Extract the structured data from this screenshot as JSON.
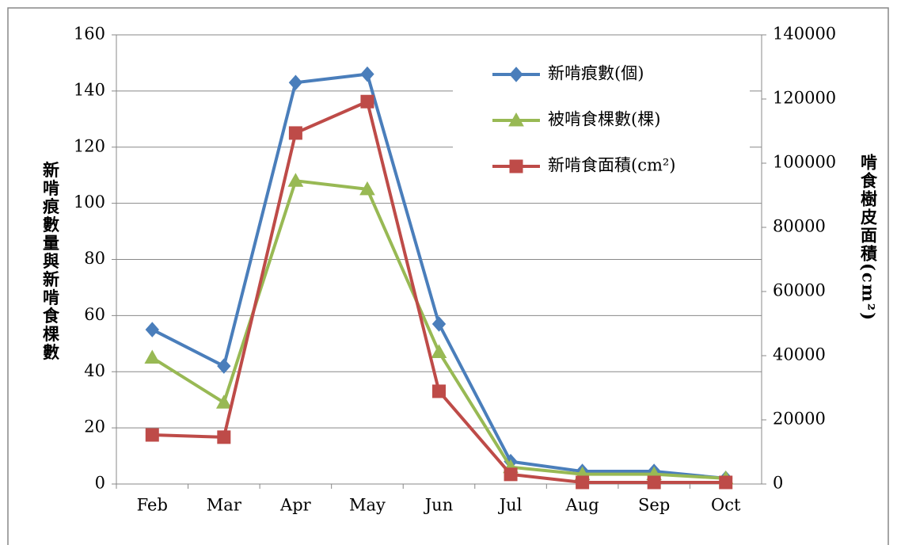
{
  "chart_data": {
    "type": "line",
    "ylabel": "新啃痕數量與新啃食棵數",
    "y2label": "啃食樹皮面積(cm²)",
    "categories": [
      "Feb",
      "Mar",
      "Apr",
      "May",
      "Jun",
      "Jul",
      "Aug",
      "Sep",
      "Oct"
    ],
    "series": [
      {
        "name": "新啃痕數(個)",
        "color": "#4a7ebb",
        "marker": "diamond",
        "values": [
          55,
          42,
          143,
          146,
          57,
          8,
          4.5,
          4.5,
          2
        ]
      },
      {
        "name": "被啃食棵數(棵)",
        "color": "#98b954",
        "marker": "triangle",
        "values": [
          45,
          29,
          108,
          105,
          47,
          6,
          3.5,
          3.5,
          2
        ]
      },
      {
        "name": "新啃食面積(cm²)",
        "color": "#be4b48",
        "marker": "square",
        "axis": "y2",
        "values": [
          15300,
          14600,
          109400,
          119200,
          28900,
          3000,
          500,
          500,
          500
        ]
      }
    ],
    "ylim": [
      0,
      160
    ],
    "yticks": [
      0,
      20,
      40,
      60,
      80,
      100,
      120,
      140,
      160
    ],
    "y2lim": [
      0,
      140000
    ],
    "y2ticks": [
      0,
      20000,
      40000,
      60000,
      80000,
      100000,
      120000,
      140000
    ],
    "grid": true,
    "legend": "upper right"
  }
}
